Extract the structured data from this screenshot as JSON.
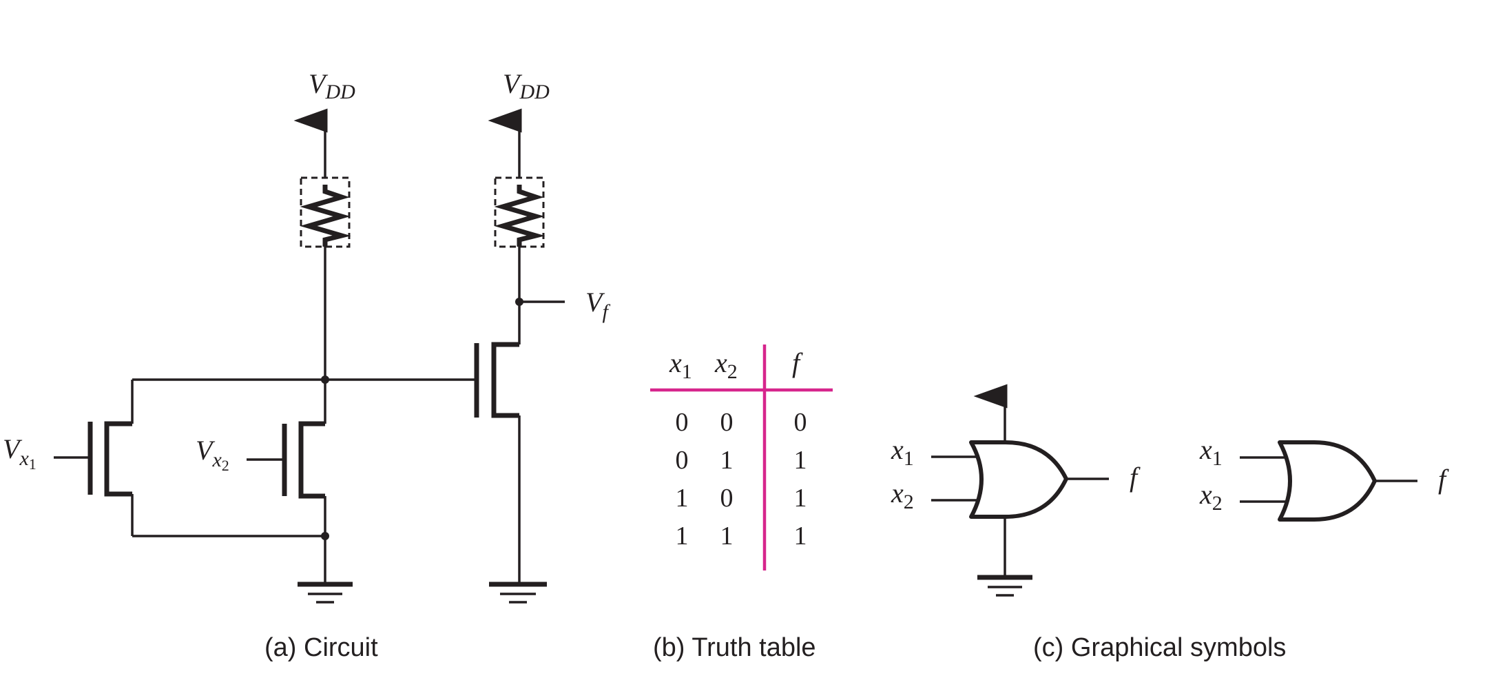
{
  "circuit": {
    "supply_label": "V",
    "supply_sub": "DD",
    "output_label": "V",
    "output_sub": "f",
    "input1_label": "V",
    "input1_sub": "x",
    "input1_subsub": "1",
    "input2_label": "V",
    "input2_sub": "x",
    "input2_subsub": "2"
  },
  "truth_table": {
    "headers": [
      {
        "var": "x",
        "sub": "1"
      },
      {
        "var": "x",
        "sub": "2"
      },
      {
        "var": "f",
        "sub": ""
      }
    ],
    "rows": [
      [
        "0",
        "0",
        "0"
      ],
      [
        "0",
        "1",
        "1"
      ],
      [
        "1",
        "0",
        "1"
      ],
      [
        "1",
        "1",
        "1"
      ]
    ],
    "rule_color": "#d6258c"
  },
  "symbols": {
    "in1_var": "x",
    "in1_sub": "1",
    "in2_var": "x",
    "in2_sub": "2",
    "out": "f"
  },
  "captions": {
    "a": "(a) Circuit",
    "b": "(b) Truth table",
    "c": "(c) Graphical symbols"
  }
}
